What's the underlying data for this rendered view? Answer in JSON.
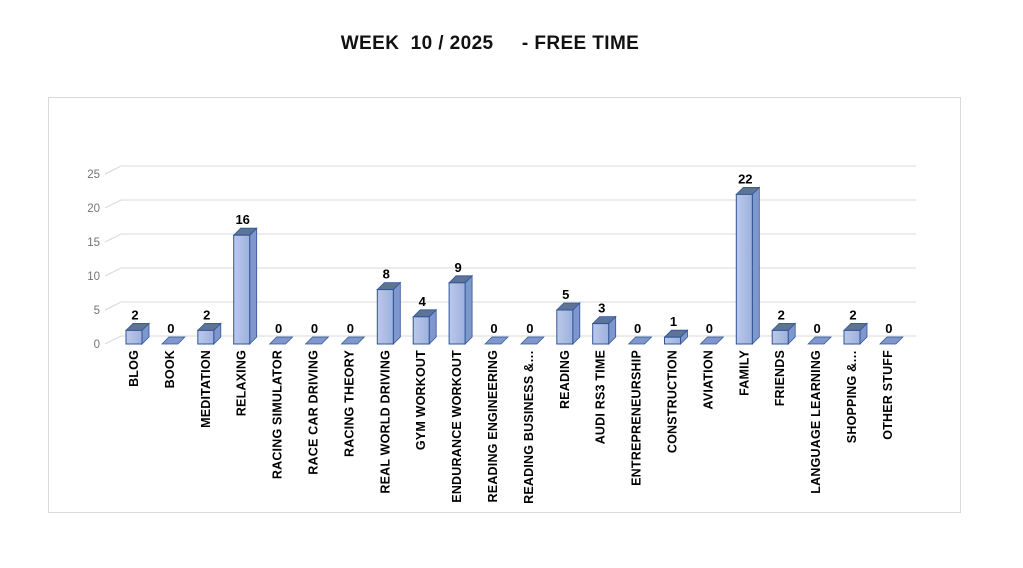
{
  "chart_data": {
    "type": "bar",
    "style": "3d-column",
    "title": "WEEK  10 / 2025     - FREE TIME",
    "categories": [
      "BLOG",
      "BOOK",
      "MEDITATION",
      "RELAXING",
      "RACING SIMULATOR",
      "RACE CAR DRIVING",
      "RACING THEORY",
      "REAL WORLD DRIVING",
      "GYM WORKOUT",
      "ENDURANCE WORKOUT",
      "READING ENGINEERING",
      "READING BUSINESS &…",
      "READING",
      "AUDI RS3 TIME",
      "ENTREPRENEURSHIP",
      "CONSTRUCTION",
      "AVIATION",
      "FAMILY",
      "FRIENDS",
      "LANGUAGE LEARNING",
      "SHOPPING &…",
      "OTHER STUFF"
    ],
    "values": [
      2,
      0,
      2,
      16,
      0,
      0,
      0,
      8,
      4,
      9,
      0,
      0,
      5,
      3,
      0,
      1,
      0,
      22,
      2,
      0,
      2,
      0
    ],
    "y_ticks": [
      0,
      5,
      10,
      15,
      20,
      25
    ],
    "ylim": [
      0,
      25
    ],
    "xlabel": "",
    "ylabel": "",
    "data_labels": true,
    "grid": true,
    "legend": "none",
    "colors": {
      "bar_front": "#9db1dd",
      "bar_front_light": "#bcc8ea",
      "bar_side": "#7f97cd",
      "bar_top": "#5e7398",
      "bar_stroke": "#2e5597",
      "gridline": "#d9d9d9",
      "axis_text": "#737373",
      "label_text": "#000000",
      "chart_border": "#d9d9d9",
      "background": "#ffffff"
    }
  }
}
